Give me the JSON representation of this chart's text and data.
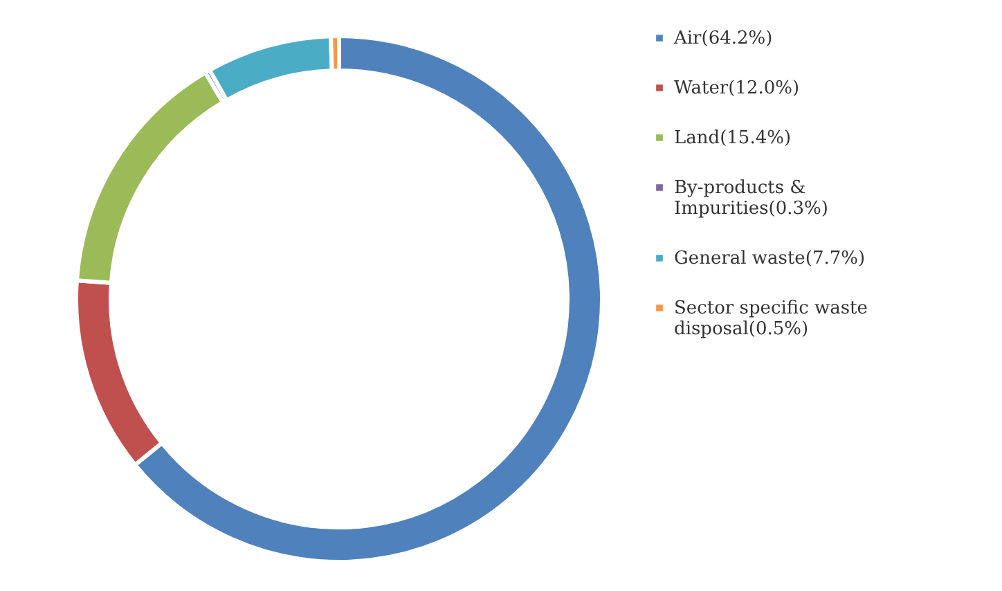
{
  "chart_data": {
    "type": "donut",
    "categories": [
      "Air(64.2%)",
      "Water(12.0%)",
      "Land(15.4%)",
      "By-products & Impurities(0.3%)",
      "General waste(7.7%)",
      "Sector specific waste disposal(0.5%)"
    ],
    "values": [
      64.2,
      12.0,
      15.4,
      0.3,
      7.7,
      0.5
    ],
    "colors": [
      "#4f81bd",
      "#c0504d",
      "#9bbb59",
      "#8064a2",
      "#4bacc6",
      "#f79646"
    ],
    "legend": "right"
  }
}
